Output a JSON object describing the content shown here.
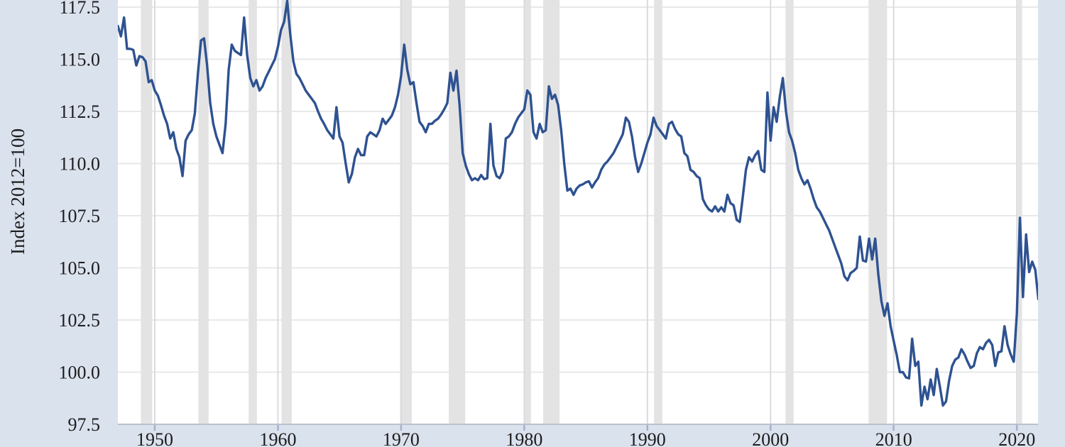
{
  "chart_data": {
    "type": "line",
    "title": "",
    "xlabel": "",
    "ylabel": "Index 2012=100",
    "grid": "on",
    "legend": "none",
    "frequency": "quarterly",
    "start_year": 1947,
    "x_range": [
      1947.0,
      2021.72
    ],
    "y_value_at_top_gridline": 117.5,
    "y_value_at_axis": 97.5,
    "y_tick_step": 2.5,
    "x_tick_labels": [
      "1950",
      "1960",
      "1970",
      "1980",
      "1990",
      "2000",
      "2010",
      "2020"
    ],
    "x_tick_years": [
      1950,
      1960,
      1970,
      1980,
      1990,
      2000,
      2010,
      2020
    ],
    "y_tick_labels": [
      "117.5",
      "115.0",
      "112.5",
      "110.0",
      "107.5",
      "105.0",
      "102.5",
      "100.0",
      "97.5"
    ],
    "y_tick_values": [
      117.5,
      115.0,
      112.5,
      110.0,
      107.5,
      105.0,
      102.5,
      100.0,
      97.5
    ],
    "recession_bands": [
      [
        1948.87,
        1949.79
      ],
      [
        1953.54,
        1954.37
      ],
      [
        1957.62,
        1958.29
      ],
      [
        1960.29,
        1961.12
      ],
      [
        1969.92,
        1970.87
      ],
      [
        1973.87,
        1975.21
      ],
      [
        1980.04,
        1980.54
      ],
      [
        1981.54,
        1982.87
      ],
      [
        1990.54,
        1991.21
      ],
      [
        2001.21,
        2001.87
      ],
      [
        2007.96,
        2009.46
      ],
      [
        2020.08,
        2020.42
      ]
    ],
    "series": [
      {
        "name": "quarterly-index-series",
        "values": [
          116.6,
          116.1,
          117.0,
          115.5,
          115.5,
          115.45,
          114.7,
          115.15,
          115.1,
          114.9,
          113.9,
          114.0,
          113.5,
          113.25,
          112.8,
          112.3,
          111.9,
          111.2,
          111.5,
          110.7,
          110.3,
          109.4,
          111.1,
          111.4,
          111.6,
          112.4,
          114.3,
          115.9,
          116.0,
          114.7,
          112.9,
          111.9,
          111.3,
          110.9,
          110.5,
          111.9,
          114.5,
          115.7,
          115.4,
          115.3,
          115.2,
          117.0,
          115.2,
          114.1,
          113.7,
          114.0,
          113.5,
          113.7,
          114.1,
          114.4,
          114.7,
          115.0,
          115.6,
          116.4,
          116.8,
          117.8,
          116.2,
          114.9,
          114.3,
          114.1,
          113.8,
          113.5,
          113.3,
          113.1,
          112.9,
          112.5,
          112.15,
          111.9,
          111.6,
          111.4,
          111.2,
          112.7,
          111.3,
          111.0,
          110.0,
          109.1,
          109.5,
          110.3,
          110.7,
          110.4,
          110.4,
          111.3,
          111.5,
          111.4,
          111.3,
          111.6,
          112.15,
          111.9,
          112.1,
          112.3,
          112.7,
          113.3,
          114.2,
          115.7,
          114.5,
          113.8,
          113.9,
          112.9,
          112.0,
          111.8,
          111.5,
          111.9,
          111.9,
          112.05,
          112.15,
          112.35,
          112.6,
          112.9,
          114.35,
          113.5,
          114.45,
          112.8,
          110.5,
          109.9,
          109.5,
          109.2,
          109.3,
          109.2,
          109.45,
          109.25,
          109.3,
          111.9,
          109.9,
          109.4,
          109.3,
          109.6,
          111.2,
          111.3,
          111.5,
          111.9,
          112.2,
          112.4,
          112.6,
          113.5,
          113.3,
          111.5,
          111.2,
          111.9,
          111.5,
          111.6,
          113.7,
          113.1,
          113.3,
          112.8,
          111.6,
          110.0,
          108.7,
          108.8,
          108.5,
          108.8,
          108.95,
          109.0,
          109.1,
          109.15,
          108.85,
          109.1,
          109.3,
          109.7,
          109.95,
          110.1,
          110.3,
          110.5,
          110.8,
          111.1,
          111.4,
          112.2,
          112.0,
          111.3,
          110.3,
          109.6,
          110.0,
          110.5,
          111.0,
          111.4,
          112.2,
          111.8,
          111.6,
          111.4,
          111.2,
          111.9,
          112.0,
          111.65,
          111.4,
          111.3,
          110.5,
          110.35,
          109.7,
          109.6,
          109.4,
          109.3,
          108.3,
          108.0,
          107.8,
          107.7,
          107.95,
          107.7,
          107.9,
          107.7,
          108.5,
          108.1,
          108.0,
          107.3,
          107.2,
          108.4,
          109.7,
          110.3,
          110.1,
          110.4,
          110.6,
          109.7,
          109.6,
          113.4,
          111.1,
          112.7,
          112.0,
          113.2,
          114.1,
          112.5,
          111.5,
          111.1,
          110.5,
          109.7,
          109.3,
          109.0,
          109.2,
          108.8,
          108.3,
          107.9,
          107.7,
          107.4,
          107.1,
          106.8,
          106.4,
          106.0,
          105.6,
          105.2,
          104.6,
          104.4,
          104.75,
          104.85,
          105.0,
          106.5,
          105.35,
          105.3,
          106.4,
          105.4,
          106.4,
          104.7,
          103.4,
          102.7,
          103.3,
          102.2,
          101.5,
          100.8,
          100.0,
          100.0,
          99.75,
          99.7,
          101.6,
          100.3,
          100.5,
          98.4,
          99.3,
          98.7,
          99.65,
          98.9,
          100.15,
          99.3,
          98.4,
          98.6,
          99.6,
          100.3,
          100.6,
          100.7,
          101.1,
          100.85,
          100.5,
          100.2,
          100.3,
          100.9,
          101.2,
          101.1,
          101.4,
          101.55,
          101.3,
          100.3,
          100.95,
          101.0,
          102.2,
          101.3,
          100.85,
          100.5,
          102.8,
          107.4,
          103.6,
          106.6,
          104.8,
          105.3,
          104.9,
          103.5
        ]
      }
    ],
    "colors": {
      "line": "#2e5291",
      "plot_background": "#ffffff",
      "outer_background": "#dae2ee",
      "recession_band": "#e3e3e3",
      "grid_horizontal": "#e7e8ea",
      "grid_vertical": "#d9dbdf",
      "axis_line": "#bac1cc",
      "tick_mark": "#a6b1c8",
      "label_text": "#1c1c1c"
    }
  }
}
